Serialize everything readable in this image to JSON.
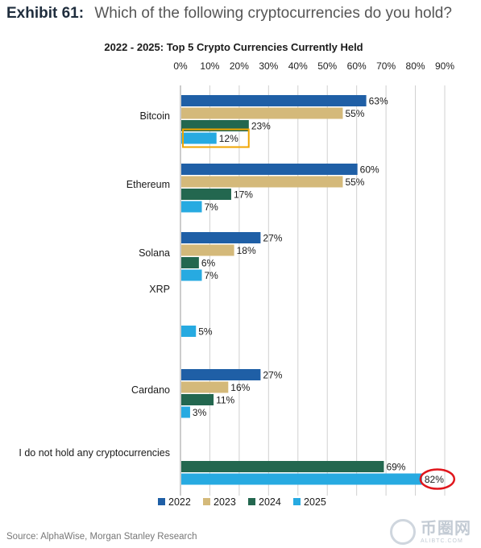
{
  "header": {
    "label": "Exhibit 61:",
    "question": "Which of the following cryptocurrencies do you hold?"
  },
  "source": "Source: AlphaWise, Morgan Stanley Research",
  "watermark": {
    "main": "币圈网",
    "sub": "ALIBTC.COM"
  },
  "colors": {
    "2022": "#1f5fa6",
    "2023": "#d4b97a",
    "2024": "#23674f",
    "2025": "#27aae1",
    "highlight_box": "#f0a500",
    "highlight_circle": "#e0161c",
    "grid": "#d0d0d0"
  },
  "chart_data": {
    "type": "bar",
    "orientation": "horizontal",
    "title": "2022 - 2025: Top 5 Crypto Currencies Currently Held",
    "xlim": [
      0,
      90
    ],
    "xticks": [
      "0%",
      "10%",
      "20%",
      "30%",
      "40%",
      "50%",
      "60%",
      "70%",
      "80%",
      "90%"
    ],
    "grid": true,
    "legend_position": "bottom",
    "categories": [
      "Bitcoin",
      "Ethereum",
      "Solana",
      "XRP",
      "Cardano",
      "I do not hold any cryptocurrencies"
    ],
    "series": [
      {
        "name": "2022",
        "values": [
          63,
          60,
          27,
          null,
          27,
          null
        ],
        "labels": [
          "63%",
          "60%",
          "27%",
          "",
          "27%",
          ""
        ]
      },
      {
        "name": "2023",
        "values": [
          55,
          55,
          18,
          null,
          16,
          null
        ],
        "labels": [
          "55%",
          "55%",
          "18%",
          "",
          "16%",
          ""
        ]
      },
      {
        "name": "2024",
        "values": [
          23,
          17,
          6,
          null,
          11,
          69
        ],
        "labels": [
          "23%",
          "17%",
          "6%",
          "",
          "11%",
          "69%"
        ]
      },
      {
        "name": "2025",
        "values": [
          12,
          7,
          7,
          5,
          3,
          82
        ],
        "labels": [
          "12%",
          "7%",
          "7%",
          "5%",
          "3%",
          "82%"
        ]
      }
    ],
    "annotations": [
      {
        "type": "box",
        "series": "2025",
        "category": "Bitcoin"
      },
      {
        "type": "circle",
        "series": "2025",
        "category": "I do not hold any cryptocurrencies"
      }
    ]
  }
}
